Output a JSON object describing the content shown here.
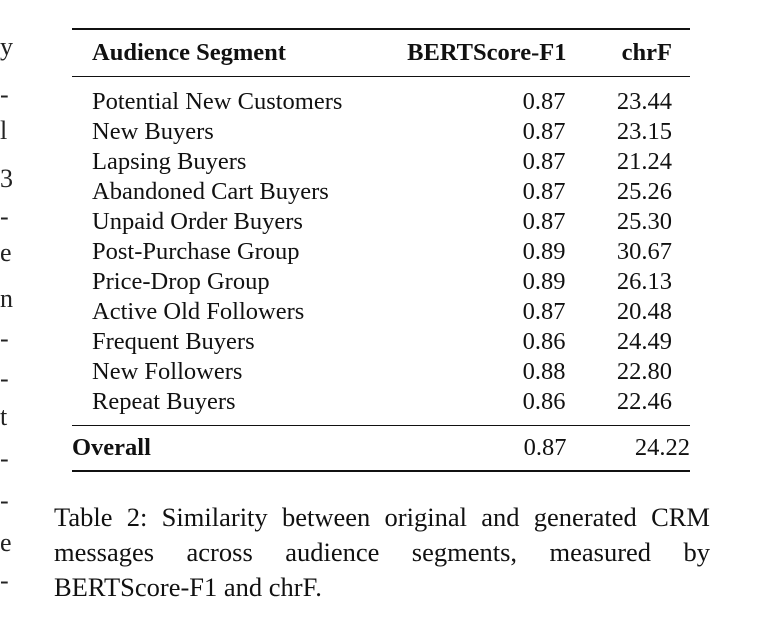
{
  "left_fragments": [
    "y",
    "-",
    "l",
    "3",
    "-",
    "e",
    "n",
    "-",
    "-",
    "t",
    "-",
    "-",
    "e",
    "-"
  ],
  "table": {
    "columns": [
      "Audience Segment",
      "BERTScore-F1",
      "chrF"
    ],
    "rows": [
      {
        "segment": "Potential New Customers",
        "bertscore": "0.87",
        "chrf": "23.44"
      },
      {
        "segment": "New Buyers",
        "bertscore": "0.87",
        "chrf": "23.15"
      },
      {
        "segment": "Lapsing Buyers",
        "bertscore": "0.87",
        "chrf": "21.24"
      },
      {
        "segment": "Abandoned Cart Buyers",
        "bertscore": "0.87",
        "chrf": "25.26"
      },
      {
        "segment": "Unpaid Order Buyers",
        "bertscore": "0.87",
        "chrf": "25.30"
      },
      {
        "segment": "Post-Purchase Group",
        "bertscore": "0.89",
        "chrf": "30.67"
      },
      {
        "segment": "Price-Drop Group",
        "bertscore": "0.89",
        "chrf": "26.13"
      },
      {
        "segment": "Active Old Followers",
        "bertscore": "0.87",
        "chrf": "20.48"
      },
      {
        "segment": "Frequent Buyers",
        "bertscore": "0.86",
        "chrf": "24.49"
      },
      {
        "segment": "New Followers",
        "bertscore": "0.88",
        "chrf": "22.80"
      },
      {
        "segment": "Repeat Buyers",
        "bertscore": "0.86",
        "chrf": "22.46"
      }
    ],
    "overall": {
      "segment": "Overall",
      "bertscore": "0.87",
      "chrf": "24.22"
    }
  },
  "caption": "Table 2:  Similarity between original and generated CRM messages across audience segments, measured by BERTScore-F1 and chrF."
}
